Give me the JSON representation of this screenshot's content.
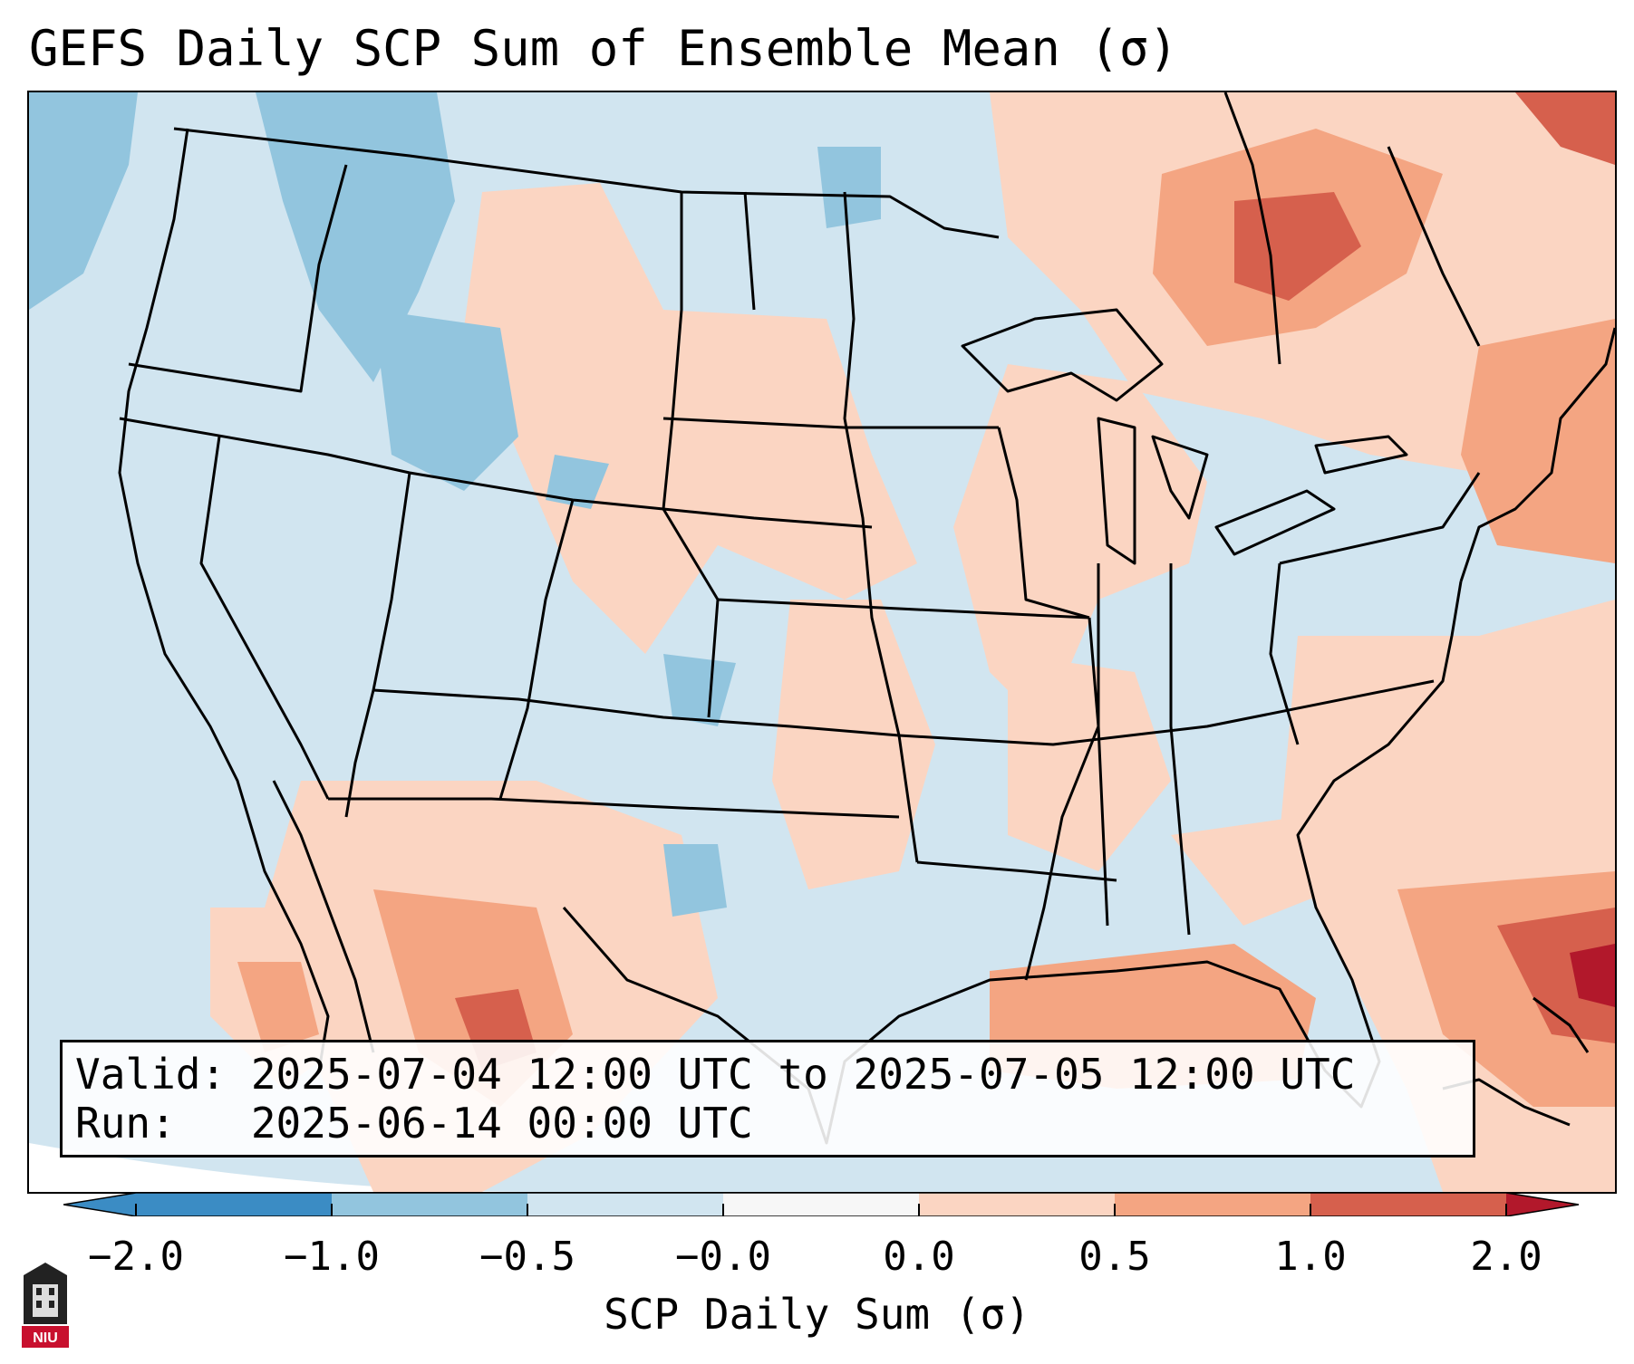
{
  "title": "GEFS Daily SCP Sum of Ensemble Mean (σ)",
  "info": {
    "valid_line": "Valid: 2025-07-04 12:00 UTC to 2025-07-05 12:00 UTC",
    "run_line": "Run:   2025-06-14 00:00 UTC"
  },
  "colorbar": {
    "label": "SCP Daily Sum (σ)",
    "ticks": [
      "−2.0",
      "−1.0",
      "−0.5",
      "−0.0",
      "0.0",
      "0.5",
      "1.0",
      "2.0"
    ],
    "colors": [
      "#3b8cc4",
      "#92c5de",
      "#d1e5f0",
      "#f7f7f7",
      "#f7f7f7",
      "#fbd5c2",
      "#f4a582",
      "#d6604d",
      "#b2182b"
    ]
  },
  "logo": {
    "icon": "niu-logo-icon",
    "text": "NIU"
  },
  "map_regions": [
    {
      "name": "northern-plains-positive",
      "category": "0.0 to 0.5"
    },
    {
      "name": "great-lakes-positive",
      "category": "0.0 to 0.5"
    },
    {
      "name": "ontario-quebec-positive",
      "category": "0.5 to 2.0"
    },
    {
      "name": "northeast-coast-positive",
      "category": "0.5 to 1.0"
    },
    {
      "name": "southeast-coast-positive",
      "category": "0.0 to 0.5"
    },
    {
      "name": "gulf-of-mexico-positive",
      "category": "0.5 to 1.0"
    },
    {
      "name": "northern-mexico-positive",
      "category": "0.5 to 2.0"
    },
    {
      "name": "western-atlantic-positive",
      "category": "1.0 to 2.0"
    },
    {
      "name": "northwest-negative",
      "category": "-1.0 to -0.5"
    },
    {
      "name": "texas-negative",
      "category": "-1.0 to -0.5"
    }
  ]
}
